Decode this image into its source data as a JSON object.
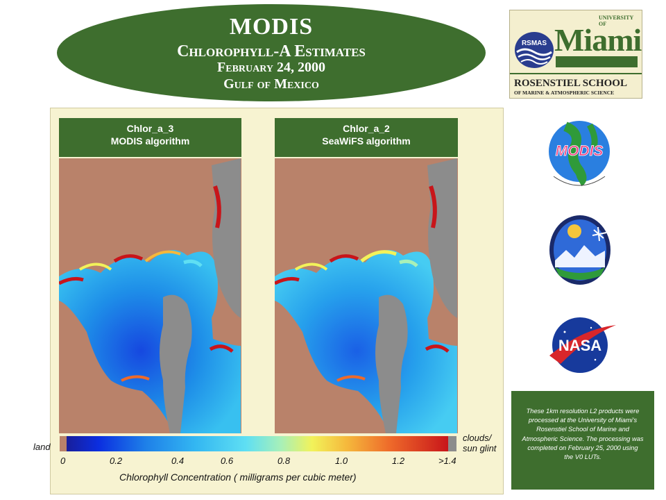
{
  "title": {
    "line1": "MODIS",
    "line2": "Chlorophyll-A Estimates",
    "line3": "February 24, 2000",
    "line4": "Gulf of Mexico"
  },
  "logo_um": {
    "univ": "UNIVERSITY OF",
    "miami": "Miami",
    "rsmas": "RSMAS",
    "school_line1": "ROSENSTIEL SCHOOL",
    "school_line2": "OF MARINE & ATMOSPHERIC SCIENCE"
  },
  "panels": [
    {
      "product": "Chlor_a_3",
      "algorithm": "MODIS algorithm"
    },
    {
      "product": "Chlor_a_2",
      "algorithm": "SeaWiFS algorithm"
    }
  ],
  "colorbar": {
    "land_label": "land",
    "clouds_label_1": "clouds/",
    "clouds_label_2": "sun glint",
    "ticks": [
      "0",
      "0.2",
      "0.4",
      "0.6",
      "0.8",
      "1.0",
      "1.2",
      ">1.4"
    ],
    "axis_label": "Chlorophyll Concentration ( milligrams per cubic meter)"
  },
  "logos": {
    "modis": "MODIS",
    "nasa": "NASA"
  },
  "note": {
    "lines": [
      "These 1km resolution L2 products were",
      "processed at the University of Miami's",
      "Rosenstiel School of Marine and",
      "Atmospheric Science. The processing was",
      "completed on February 25, 2000 using",
      "the V0 LUTs."
    ]
  },
  "colors": {
    "green": "#3e6e2e",
    "panel_bg": "#f7f3d1",
    "land": "#b9826a",
    "cloud": "#8c8c8c"
  }
}
